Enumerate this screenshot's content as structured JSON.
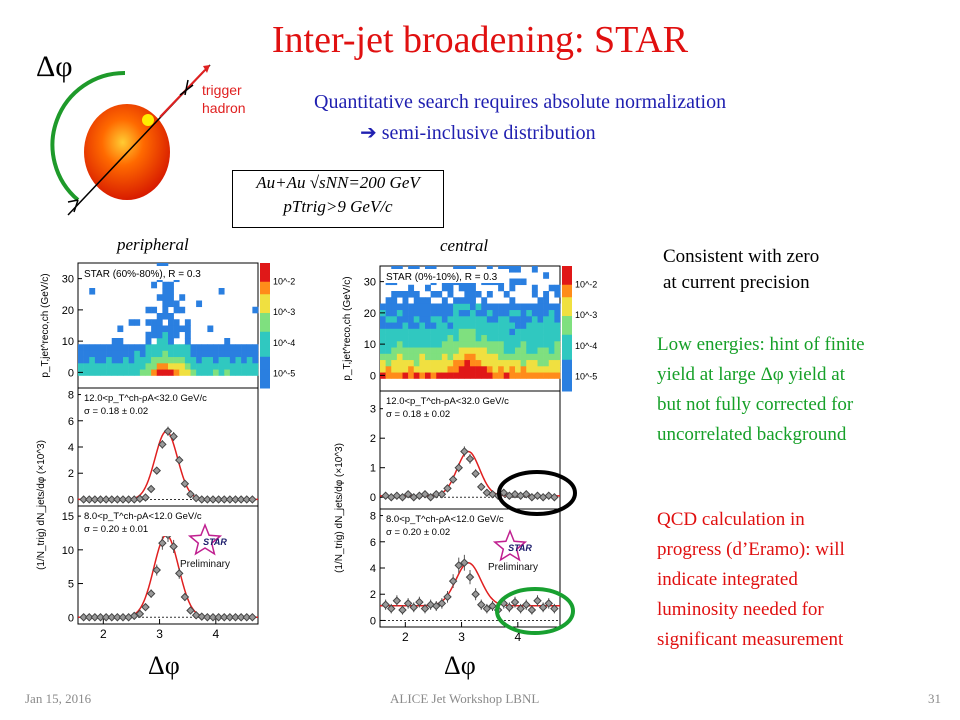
{
  "slide": {
    "title": "Inter-jet broadening: STAR",
    "dphi_symbol": "Δφ",
    "trigger_label_1": "trigger",
    "trigger_label_2": "hadron",
    "intro_line_1": "Quantitative search requires absolute normalization",
    "intro_line_2": "semi-inclusive distribution",
    "arrow_symbol": "➔",
    "condition_line_1": "Au+Au √sNN=200 GeV",
    "condition_line_2": "pTtrig>9 GeV/c",
    "label_peripheral": "peripheral",
    "label_central": "central",
    "xlabel_left": "Δφ",
    "xlabel_right": "Δφ",
    "preliminary": "Preliminary",
    "star_logo_text": "STAR",
    "note_consistent_1": "Consistent with zero",
    "note_consistent_2": "at current precision",
    "note_low_1": "Low energies: hint of finite",
    "note_low_2": "yield at large Δφ yield at",
    "note_low_3": "but not fully corrected for",
    "note_low_4": "uncorrelated background",
    "note_qcd_1": "QCD calculation in",
    "note_qcd_2": "progress (d’Eramo): will",
    "note_qcd_3": "indicate integrated",
    "note_qcd_4": "luminosity needed for",
    "note_qcd_5": "significant measurement",
    "footer_date": "Jan 15, 2016",
    "footer_center": "ALICE Jet Workshop LBNL",
    "footer_page": "31"
  },
  "colors": {
    "title": "#e01010",
    "blue_text": "#1f1fb0",
    "green_text": "#16a028",
    "fit_curve": "#e02020",
    "circle_black": "#000000",
    "circle_green": "#18a030"
  },
  "chart_data": [
    {
      "type": "heatmap",
      "panel": "peripheral-top",
      "title": "STAR (60%-80%), R = 0.3",
      "ylabel": "p_T,jet^reco,ch (GeV/c)",
      "yticks": [
        "0",
        "10",
        "20",
        "30"
      ],
      "colorbar_ticks": [
        "10^-2",
        "10^-3",
        "10^-4",
        "10^-5"
      ],
      "ylim": [
        -5,
        35
      ]
    },
    {
      "type": "scatter",
      "panel": "peripheral-middle",
      "annotation_1": "12.0<p_T^ch-ρA<32.0 GeV/c",
      "annotation_2": "σ = 0.18 ± 0.02",
      "ylabel": "(1/N_trig) dN_jets/dφ (×10^3)",
      "yticks": [
        "0",
        "2",
        "4",
        "6",
        "8"
      ],
      "ylim": [
        -0.5,
        8.5
      ],
      "x": [
        1.65,
        1.75,
        1.85,
        1.95,
        2.05,
        2.15,
        2.25,
        2.35,
        2.45,
        2.55,
        2.65,
        2.75,
        2.85,
        2.95,
        3.05,
        3.15,
        3.25,
        3.35,
        3.45,
        3.55,
        3.65,
        3.75,
        3.85,
        3.95,
        4.05,
        4.15,
        4.25,
        4.35,
        4.45,
        4.55,
        4.65
      ],
      "values": [
        0,
        0,
        0,
        0,
        0,
        0,
        0,
        0,
        0,
        0,
        0.05,
        0.15,
        0.8,
        2.2,
        4.2,
        5.2,
        4.8,
        3.0,
        1.2,
        0.4,
        0.1,
        0,
        0,
        0,
        0,
        0,
        0,
        0,
        0,
        0,
        0
      ]
    },
    {
      "type": "scatter",
      "panel": "peripheral-bottom",
      "annotation_1": "8.0<p_T^ch-ρA<12.0 GeV/c",
      "annotation_2": "σ = 0.20 ± 0.01",
      "ylabel": "(1/N_trig) dN_jets/dφ (×10^3)",
      "yticks": [
        "0",
        "5",
        "10",
        "15"
      ],
      "xticks": [
        "2",
        "3",
        "4"
      ],
      "ylim": [
        -1,
        16.5
      ],
      "x": [
        1.65,
        1.75,
        1.85,
        1.95,
        2.05,
        2.15,
        2.25,
        2.35,
        2.45,
        2.55,
        2.65,
        2.75,
        2.85,
        2.95,
        3.05,
        3.15,
        3.25,
        3.35,
        3.45,
        3.55,
        3.65,
        3.75,
        3.85,
        3.95,
        4.05,
        4.15,
        4.25,
        4.35,
        4.45,
        4.55,
        4.65
      ],
      "values": [
        0,
        0,
        0,
        0,
        0,
        0,
        0,
        0,
        0,
        0.2,
        0.5,
        1.5,
        3.5,
        7.0,
        11.0,
        12.2,
        10.5,
        6.5,
        3.0,
        1.0,
        0.3,
        0.1,
        0,
        0,
        0,
        0,
        0,
        0,
        0,
        0,
        0
      ]
    },
    {
      "type": "heatmap",
      "panel": "central-top",
      "title": "STAR (0%-10%), R = 0.3",
      "ylabel": "p_T,jet^reco,ch (GeV/c)",
      "yticks": [
        "0",
        "10",
        "20",
        "30"
      ],
      "colorbar_ticks": [
        "10^-2",
        "10^-3",
        "10^-4",
        "10^-5"
      ],
      "ylim": [
        -5,
        35
      ]
    },
    {
      "type": "scatter",
      "panel": "central-middle",
      "annotation_1": "12.0<p_T^ch-ρA<32.0 GeV/c",
      "annotation_2": "σ = 0.18 ± 0.02",
      "ylabel": "(1/N_trig) dN_jets/dφ (×10^3)",
      "yticks": [
        "0",
        "1",
        "2",
        "3"
      ],
      "ylim": [
        -0.4,
        3.6
      ],
      "x": [
        1.65,
        1.75,
        1.85,
        1.95,
        2.05,
        2.15,
        2.25,
        2.35,
        2.45,
        2.55,
        2.65,
        2.75,
        2.85,
        2.95,
        3.05,
        3.15,
        3.25,
        3.35,
        3.45,
        3.55,
        3.65,
        3.75,
        3.85,
        3.95,
        4.05,
        4.15,
        4.25,
        4.35,
        4.45,
        4.55,
        4.65
      ],
      "values": [
        0.05,
        0.0,
        0.05,
        0.0,
        0.1,
        0.0,
        0.05,
        0.1,
        0.0,
        0.1,
        0.1,
        0.3,
        0.6,
        1.0,
        1.55,
        1.3,
        0.8,
        0.35,
        0.15,
        0.1,
        0.05,
        0.15,
        0.05,
        0.1,
        0.05,
        0.1,
        0.0,
        0.05,
        0.0,
        0.05,
        0.0
      ]
    },
    {
      "type": "scatter",
      "panel": "central-bottom",
      "annotation_1": "8.0<p_T^ch-ρA<12.0 GeV/c",
      "annotation_2": "σ = 0.20 ± 0.02",
      "ylabel": "(1/N_trig) dN_jets/dφ (×10^3)",
      "yticks": [
        "0",
        "2",
        "4",
        "6",
        "8"
      ],
      "xticks": [
        "2",
        "3",
        "4"
      ],
      "ylim": [
        -0.5,
        8.5
      ],
      "x": [
        1.65,
        1.75,
        1.85,
        1.95,
        2.05,
        2.15,
        2.25,
        2.35,
        2.45,
        2.55,
        2.65,
        2.75,
        2.85,
        2.95,
        3.05,
        3.15,
        3.25,
        3.35,
        3.45,
        3.55,
        3.65,
        3.75,
        3.85,
        3.95,
        4.05,
        4.15,
        4.25,
        4.35,
        4.45,
        4.55,
        4.65
      ],
      "values": [
        1.2,
        0.9,
        1.5,
        0.8,
        1.3,
        1.0,
        1.4,
        0.9,
        1.2,
        1.1,
        1.3,
        1.8,
        3.0,
        4.2,
        4.4,
        3.3,
        2.0,
        1.2,
        0.9,
        1.1,
        0.8,
        1.3,
        1.0,
        1.4,
        0.9,
        1.2,
        0.8,
        1.5,
        1.0,
        1.3,
        0.9
      ]
    }
  ]
}
